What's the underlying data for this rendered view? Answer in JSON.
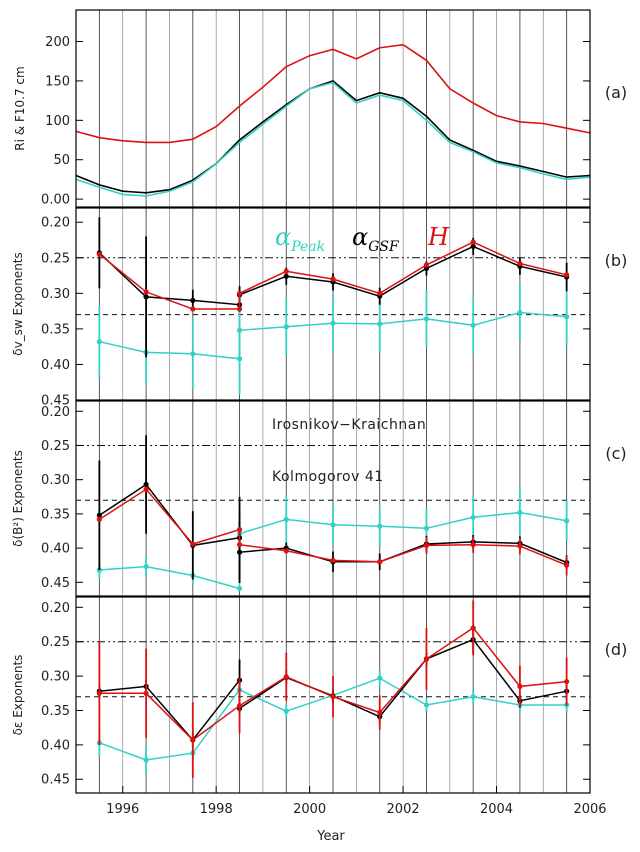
{
  "figure": {
    "xlabel": "Year",
    "x_ticks": [
      1996,
      1998,
      2000,
      2002,
      2004,
      2006
    ]
  },
  "chart_data": [
    {
      "panel": "(a)",
      "type": "line",
      "ylabel": "Ri & F10.7 cm",
      "ylim": [
        -10,
        240
      ],
      "y_ticks": [
        0,
        50,
        100,
        150,
        200
      ],
      "xlim": [
        1995,
        2006
      ],
      "grid": "vertical lines every 6 months",
      "series": [
        {
          "color": "#dd1111",
          "x": [
            1995.0,
            1995.5,
            1996.0,
            1996.5,
            1997.0,
            1997.5,
            1998.0,
            1998.5,
            1999.0,
            1999.5,
            2000.0,
            2000.5,
            2001.0,
            2001.5,
            2002.0,
            2002.5,
            2003.0,
            2003.5,
            2004.0,
            2004.5,
            2005.0,
            2005.5,
            2006.0
          ],
          "values": [
            86,
            78,
            74,
            72,
            72,
            76,
            92,
            118,
            142,
            168,
            182,
            190,
            178,
            192,
            196,
            176,
            140,
            122,
            106,
            98,
            96,
            90,
            84
          ]
        },
        {
          "color": "#000000",
          "x": [
            1995.0,
            1995.5,
            1996.0,
            1996.5,
            1997.0,
            1997.5,
            1998.0,
            1998.5,
            1999.0,
            1999.5,
            2000.0,
            2000.5,
            2001.0,
            2001.5,
            2002.0,
            2002.5,
            2003.0,
            2003.5,
            2004.0,
            2004.5,
            2005.0,
            2005.5,
            2006.0
          ],
          "values": [
            30,
            18,
            10,
            8,
            12,
            24,
            45,
            75,
            98,
            120,
            140,
            150,
            125,
            135,
            128,
            105,
            75,
            62,
            48,
            42,
            35,
            28,
            30
          ]
        },
        {
          "color": "#33d1c4",
          "x": [
            1995.0,
            1995.5,
            1996.0,
            1996.5,
            1997.0,
            1997.5,
            1998.0,
            1998.5,
            1999.0,
            1999.5,
            2000.0,
            2000.5,
            2001.0,
            2001.5,
            2002.0,
            2002.5,
            2003.0,
            2003.5,
            2004.0,
            2004.5,
            2005.0,
            2005.5,
            2006.0
          ],
          "values": [
            25,
            15,
            6,
            4,
            10,
            22,
            45,
            72,
            95,
            118,
            140,
            148,
            122,
            132,
            125,
            100,
            72,
            60,
            46,
            40,
            32,
            25,
            28
          ]
        }
      ]
    },
    {
      "panel": "(b)",
      "type": "line",
      "ylabel": "δv_sw Exponents",
      "ylim": [
        0.45,
        0.18
      ],
      "y_ticks": [
        0.2,
        0.25,
        0.3,
        0.35,
        0.4,
        0.45
      ],
      "hlines": [
        {
          "value": 0.25,
          "style": "dash-dot-dot"
        },
        {
          "value": 0.33,
          "style": "dashed"
        }
      ],
      "legend": [
        "α_Peak",
        "α_GSF",
        "H"
      ],
      "series": [
        {
          "name": "α_Peak",
          "color": "#33d1c4",
          "x": [
            1995.5,
            1996.5,
            1997.5,
            1998.5,
            1998.5,
            1999.5,
            2000.5,
            2001.5,
            2002.5,
            2003.5,
            2004.5,
            2005.5
          ],
          "values": [
            0.368,
            0.383,
            0.385,
            0.392,
            0.352,
            0.347,
            0.342,
            0.343,
            0.336,
            0.345,
            0.327,
            0.333
          ],
          "errors": [
            0.05,
            0.045,
            0.05,
            0.05,
            0.04,
            0.04,
            0.04,
            0.04,
            0.04,
            0.04,
            0.04,
            0.04
          ]
        },
        {
          "name": "α_GSF",
          "color": "#000000",
          "x": [
            1995.5,
            1996.5,
            1997.5,
            1998.5,
            1998.5,
            1999.5,
            2000.5,
            2001.5,
            2002.5,
            2003.5,
            2004.5,
            2005.5
          ],
          "values": [
            0.243,
            0.305,
            0.31,
            0.316,
            0.302,
            0.276,
            0.284,
            0.304,
            0.265,
            0.234,
            0.262,
            0.277
          ],
          "errors": [
            0.05,
            0.085,
            0.015,
            0.01,
            0.012,
            0.012,
            0.012,
            0.012,
            0.01,
            0.012,
            0.012,
            0.02
          ]
        },
        {
          "name": "H",
          "color": "#dd1111",
          "x": [
            1995.5,
            1996.5,
            1997.5,
            1998.5,
            1998.5,
            1999.5,
            2000.5,
            2001.5,
            2002.5,
            2003.5,
            2004.5,
            2005.5
          ],
          "values": [
            0.245,
            0.298,
            0.322,
            0.322,
            0.3,
            0.269,
            0.28,
            0.3,
            0.26,
            0.228,
            0.258,
            0.274
          ],
          "errors": [
            0,
            0,
            0,
            0,
            0,
            0,
            0,
            0,
            0,
            0,
            0,
            0
          ]
        }
      ]
    },
    {
      "panel": "(c)",
      "type": "line",
      "ylabel": "δ(B²) Exponents",
      "ylim": [
        0.47,
        0.185
      ],
      "y_ticks": [
        0.2,
        0.25,
        0.3,
        0.35,
        0.4,
        0.45
      ],
      "hlines": [
        {
          "value": 0.25,
          "style": "dash-dot-dot"
        },
        {
          "value": 0.33,
          "style": "dashed"
        }
      ],
      "annotations": [
        "Irosnikov−Kraichnan",
        "Kolmogorov 41"
      ],
      "series": [
        {
          "name": "α_Peak",
          "color": "#33d1c4",
          "x": [
            1995.5,
            1996.5,
            1997.5,
            1998.5,
            1998.5,
            1999.5,
            2000.5,
            2001.5,
            2002.5,
            2003.5,
            2004.5,
            2005.5
          ],
          "values": [
            0.432,
            0.427,
            0.44,
            0.459,
            0.379,
            0.358,
            0.366,
            0.368,
            0.371,
            0.355,
            0.348,
            0.36
          ],
          "errors": [
            0.012,
            0.015,
            0.012,
            0,
            0.03,
            0.035,
            0.03,
            0.03,
            0.03,
            0.03,
            0.035,
            0.03
          ]
        },
        {
          "name": "α_GSF",
          "color": "#000000",
          "x": [
            1995.5,
            1996.5,
            1997.5,
            1998.5,
            1998.5,
            1999.5,
            2000.5,
            2001.5,
            2002.5,
            2003.5,
            2004.5,
            2005.5
          ],
          "values": [
            0.352,
            0.307,
            0.396,
            0.385,
            0.406,
            0.4,
            0.42,
            0.42,
            0.394,
            0.391,
            0.393,
            0.421
          ],
          "errors": [
            0.08,
            0.072,
            0.05,
            0.06,
            0.045,
            0.008,
            0.015,
            0.012,
            0.012,
            0.01,
            0.01,
            0.01
          ]
        },
        {
          "name": "H",
          "color": "#dd1111",
          "x": [
            1995.5,
            1996.5,
            1997.5,
            1998.5,
            1998.5,
            1999.5,
            2000.5,
            2001.5,
            2002.5,
            2003.5,
            2004.5,
            2005.5
          ],
          "values": [
            0.358,
            0.314,
            0.394,
            0.373,
            0.395,
            0.404,
            0.418,
            0.42,
            0.396,
            0.395,
            0.397,
            0.425
          ],
          "errors": [
            0,
            0,
            0,
            0,
            0,
            0,
            0,
            0,
            0.012,
            0.012,
            0.012,
            0.015
          ]
        }
      ]
    },
    {
      "panel": "(d)",
      "type": "line",
      "ylabel": "δε Exponents",
      "ylim": [
        0.47,
        0.185
      ],
      "y_ticks": [
        0.2,
        0.25,
        0.3,
        0.35,
        0.4,
        0.45
      ],
      "hlines": [
        {
          "value": 0.25,
          "style": "dash-dot-dot"
        },
        {
          "value": 0.33,
          "style": "dashed"
        }
      ],
      "series": [
        {
          "name": "α_Peak",
          "color": "#33d1c4",
          "x": [
            1995.5,
            1996.5,
            1997.5,
            1998.5,
            1999.5,
            2000.5,
            2001.5,
            2002.5,
            2003.5,
            2004.5,
            2005.5
          ],
          "values": [
            0.397,
            0.422,
            0.412,
            0.32,
            0.351,
            0.328,
            0.303,
            0.342,
            0.33,
            0.342,
            0.342
          ],
          "errors": [
            0.02,
            0.02,
            0.01,
            0.01,
            0.01,
            0.01,
            0.012,
            0.01,
            0.01,
            0.01,
            0.01
          ]
        },
        {
          "name": "α_GSF",
          "color": "#000000",
          "x": [
            1995.5,
            1996.5,
            1997.5,
            1998.5,
            1998.5,
            1999.5,
            2000.5,
            2001.5,
            2002.5,
            2003.5,
            2004.5,
            2005.5
          ],
          "values": [
            0.322,
            0.315,
            0.393,
            0.306,
            0.347,
            0.302,
            0.329,
            0.359,
            0.275,
            0.247,
            0.336,
            0.322
          ],
          "errors": [
            0.01,
            0.01,
            0.01,
            0.03,
            0.01,
            0.01,
            0.01,
            0.01,
            0.01,
            0.02,
            0.01,
            0.01
          ]
        },
        {
          "name": "H",
          "color": "#dd1111",
          "x": [
            1995.5,
            1996.5,
            1997.5,
            1998.5,
            1999.5,
            2000.5,
            2001.5,
            2002.5,
            2003.5,
            2004.5,
            2005.5
          ],
          "values": [
            0.325,
            0.325,
            0.393,
            0.343,
            0.301,
            0.33,
            0.353,
            0.275,
            0.23,
            0.315,
            0.308
          ],
          "errors": [
            0.075,
            0.065,
            0.055,
            0.04,
            0.035,
            0.03,
            0.025,
            0.045,
            0.04,
            0.03,
            0.035
          ]
        }
      ]
    }
  ]
}
